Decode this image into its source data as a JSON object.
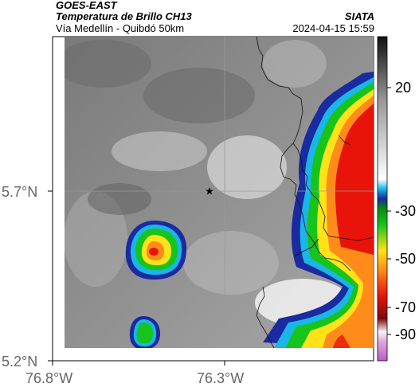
{
  "header": {
    "satellite": "GOES-EAST",
    "product": "Temperatura de Brillo CH13",
    "region": "Vía Medellín - Quibdó 50km",
    "source": "SIATA",
    "timestamp": "2024-04-15 15:59"
  },
  "axes": {
    "lat_ticks": [
      "5.7°N",
      "5.2°N"
    ],
    "lon_ticks": [
      "76.8°W",
      "76.3°W"
    ]
  },
  "colorbar": {
    "labels": [
      "20",
      "-30",
      "-50",
      "-70",
      "-90"
    ]
  },
  "map": {
    "marker": "star-marker",
    "colors": {
      "cold_red": "#e8140a",
      "orange": "#ff8c1a",
      "yellow": "#ffe21a",
      "green": "#16c41a",
      "cyan": "#19b6e6",
      "blue": "#1a2aa0"
    }
  }
}
